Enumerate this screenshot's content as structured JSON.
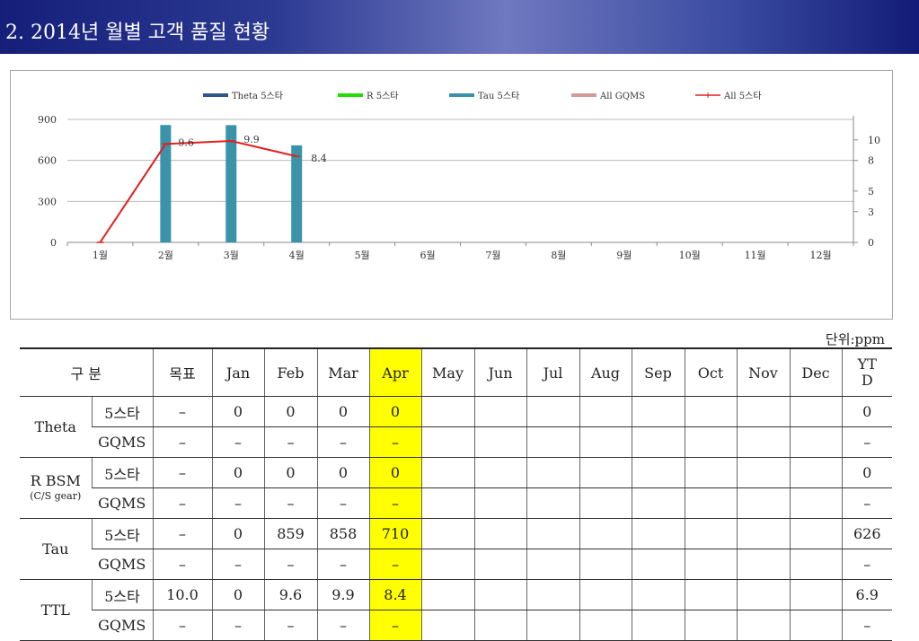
{
  "header": {
    "title": "2. 2014년 월별 고객 품질 현황"
  },
  "colors": {
    "theta": "#2e5588",
    "r": "#22dd00",
    "tau": "#3a93a8",
    "gqms": "#d49a9a",
    "all5": "#e02020",
    "highlight": "#ffff00"
  },
  "chart_data": {
    "type": "bar",
    "categories": [
      "1월",
      "2월",
      "3월",
      "4월",
      "5월",
      "6월",
      "7월",
      "8월",
      "9월",
      "10월",
      "11월",
      "12월"
    ],
    "y_left": {
      "min": 0,
      "max": 900,
      "ticks": [
        "900",
        "600",
        "300",
        "0"
      ]
    },
    "y_right": {
      "min": 0,
      "max": 12,
      "ticks": [
        "10",
        "8",
        "5",
        "3",
        "0"
      ]
    },
    "legend": [
      "Theta 5스타",
      "R 5스타",
      "Tau 5스타",
      "All GQMS",
      "All 5스타"
    ],
    "series": [
      {
        "name": "Theta 5스타",
        "type": "bar",
        "axis": "left",
        "values": [
          0,
          0,
          0,
          0,
          null,
          null,
          null,
          null,
          null,
          null,
          null,
          null
        ]
      },
      {
        "name": "R 5스타",
        "type": "bar",
        "axis": "left",
        "values": [
          0,
          0,
          0,
          0,
          null,
          null,
          null,
          null,
          null,
          null,
          null,
          null
        ]
      },
      {
        "name": "Tau 5스타",
        "type": "bar",
        "axis": "left",
        "values": [
          0,
          859,
          858,
          710,
          null,
          null,
          null,
          null,
          null,
          null,
          null,
          null
        ]
      },
      {
        "name": "All GQMS",
        "type": "line",
        "axis": "right",
        "values": [
          null,
          null,
          null,
          null,
          null,
          null,
          null,
          null,
          null,
          null,
          null,
          null
        ]
      },
      {
        "name": "All 5스타",
        "type": "line",
        "axis": "right",
        "values": [
          0,
          9.6,
          9.9,
          8.4,
          null,
          null,
          null,
          null,
          null,
          null,
          null,
          null
        ]
      }
    ],
    "data_labels": [
      "9.6",
      "9.9",
      "8.4"
    ],
    "legend_position": "top",
    "grid": true
  },
  "unit_label": "단위:ppm",
  "table": {
    "header": {
      "category": "구 분",
      "target": "목표",
      "months": [
        "Jan",
        "Feb",
        "Mar",
        "Apr",
        "May",
        "Jun",
        "Jul",
        "Aug",
        "Sep",
        "Oct",
        "Nov",
        "Dec"
      ],
      "ytd": "YT\nD"
    },
    "groups": [
      {
        "name": "Theta",
        "sub_name": "",
        "rows": [
          {
            "label": "5스타",
            "target": "–",
            "months": [
              "0",
              "0",
              "0",
              "0",
              "",
              "",
              "",
              "",
              "",
              "",
              "",
              ""
            ],
            "ytd": "0"
          },
          {
            "label": "GQMS",
            "target": "–",
            "months": [
              "–",
              "–",
              "–",
              "–",
              "",
              "",
              "",
              "",
              "",
              "",
              "",
              ""
            ],
            "ytd": "–"
          }
        ]
      },
      {
        "name": "R BSM",
        "sub_name": "(C/S gear)",
        "rows": [
          {
            "label": "5스타",
            "target": "–",
            "months": [
              "0",
              "0",
              "0",
              "0",
              "",
              "",
              "",
              "",
              "",
              "",
              "",
              ""
            ],
            "ytd": "0"
          },
          {
            "label": "GQMS",
            "target": "–",
            "months": [
              "–",
              "–",
              "–",
              "–",
              "",
              "",
              "",
              "",
              "",
              "",
              "",
              ""
            ],
            "ytd": "–"
          }
        ]
      },
      {
        "name": "Tau",
        "sub_name": "",
        "rows": [
          {
            "label": "5스타",
            "target": "–",
            "months": [
              "0",
              "859",
              "858",
              "710",
              "",
              "",
              "",
              "",
              "",
              "",
              "",
              ""
            ],
            "ytd": "626"
          },
          {
            "label": "GQMS",
            "target": "–",
            "months": [
              "–",
              "–",
              "–",
              "–",
              "",
              "",
              "",
              "",
              "",
              "",
              "",
              ""
            ],
            "ytd": "–"
          }
        ]
      },
      {
        "name": "TTL",
        "sub_name": "",
        "rows": [
          {
            "label": "5스타",
            "target": "10.0",
            "months": [
              "0",
              "9.6",
              "9.9",
              "8.4",
              "",
              "",
              "",
              "",
              "",
              "",
              "",
              ""
            ],
            "ytd": "6.9"
          },
          {
            "label": "GQMS",
            "target": "–",
            "months": [
              "–",
              "–",
              "–",
              "–",
              "",
              "",
              "",
              "",
              "",
              "",
              "",
              ""
            ],
            "ytd": "–"
          }
        ]
      }
    ]
  }
}
